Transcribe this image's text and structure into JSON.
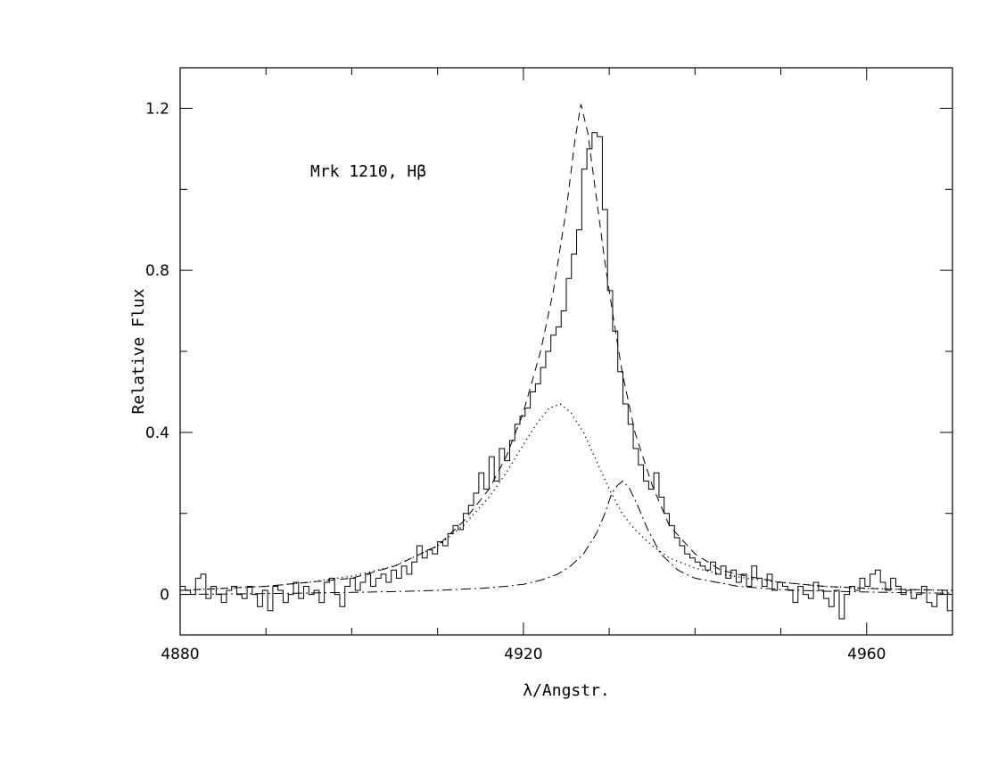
{
  "chart_data": {
    "type": "line",
    "annotation": "Mrk  1210,  Hβ",
    "xlabel": "λ/Angstr.",
    "ylabel": "Relative Flux",
    "xlim": [
      4880,
      4970
    ],
    "ylim": [
      -0.1,
      1.3
    ],
    "x_ticks": [
      "4880",
      "4920",
      "4960"
    ],
    "y_ticks": [
      "0",
      "0.4",
      "0.8",
      "1.2"
    ],
    "grid": false,
    "series": [
      {
        "style": "solid",
        "x": [
          4880,
          4880.6,
          4881.2,
          4881.8,
          4882.4,
          4883,
          4883.6,
          4884.2,
          4884.8,
          4885.4,
          4886,
          4886.6,
          4887.2,
          4887.8,
          4888.4,
          4889,
          4889.6,
          4890.2,
          4890.8,
          4891.4,
          4892,
          4892.6,
          4893.2,
          4893.8,
          4894.4,
          4895,
          4895.6,
          4896.2,
          4896.8,
          4897.4,
          4898,
          4898.6,
          4899.2,
          4899.8,
          4900.4,
          4901,
          4901.6,
          4902.2,
          4902.8,
          4903.4,
          4904,
          4904.6,
          4905.2,
          4905.8,
          4906.4,
          4907,
          4907.6,
          4908.2,
          4908.8,
          4909.4,
          4910,
          4910.6,
          4911.2,
          4911.8,
          4912.4,
          4913,
          4913.6,
          4914.2,
          4914.8,
          4915.4,
          4916,
          4916.6,
          4917.2,
          4917.8,
          4918.4,
          4919,
          4919.6,
          4920.2,
          4920.8,
          4921.4,
          4922,
          4922.6,
          4923.2,
          4923.8,
          4924.4,
          4925,
          4925.6,
          4926.2,
          4926.8,
          4927.4,
          4928,
          4928.6,
          4929.2,
          4929.8,
          4930.4,
          4931,
          4931.6,
          4932.2,
          4932.8,
          4933.4,
          4934,
          4934.6,
          4935.2,
          4935.8,
          4936.4,
          4937,
          4937.6,
          4938.2,
          4938.8,
          4939.4,
          4940,
          4940.6,
          4941.2,
          4941.8,
          4942.4,
          4943,
          4943.6,
          4944.2,
          4944.8,
          4945.4,
          4946,
          4946.6,
          4947.2,
          4947.8,
          4948.4,
          4949,
          4949.6,
          4950.2,
          4950.8,
          4951.4,
          4952,
          4952.6,
          4953.2,
          4953.8,
          4954.4,
          4955,
          4955.6,
          4956.2,
          4956.8,
          4957.4,
          4958,
          4958.6,
          4959.2,
          4959.8,
          4960.4,
          4961,
          4961.6,
          4962.2,
          4962.8,
          4963.4,
          4964,
          4964.6,
          4965.2,
          4965.8,
          4966.4,
          4967,
          4967.6,
          4968.2,
          4968.8,
          4969.4,
          4970
        ],
        "y": [
          0.02,
          0.01,
          0.0,
          0.04,
          0.05,
          -0.01,
          0.02,
          0.0,
          -0.02,
          0.01,
          0.02,
          0.0,
          -0.01,
          0.02,
          0.0,
          -0.03,
          0.01,
          -0.04,
          0.02,
          0.01,
          -0.02,
          0.0,
          0.03,
          -0.01,
          0.02,
          0.0,
          0.01,
          -0.02,
          0.03,
          0.04,
          0.0,
          -0.03,
          0.02,
          0.04,
          0.01,
          0.03,
          0.05,
          0.02,
          0.04,
          0.05,
          0.03,
          0.06,
          0.04,
          0.07,
          0.05,
          0.08,
          0.12,
          0.09,
          0.11,
          0.1,
          0.13,
          0.12,
          0.15,
          0.17,
          0.16,
          0.2,
          0.22,
          0.25,
          0.3,
          0.26,
          0.34,
          0.28,
          0.36,
          0.33,
          0.38,
          0.42,
          0.44,
          0.46,
          0.5,
          0.52,
          0.56,
          0.6,
          0.64,
          0.66,
          0.7,
          0.78,
          0.84,
          0.9,
          1.05,
          1.1,
          1.14,
          1.13,
          0.95,
          0.75,
          0.65,
          0.55,
          0.47,
          0.42,
          0.36,
          0.32,
          0.28,
          0.26,
          0.3,
          0.24,
          0.2,
          0.17,
          0.14,
          0.12,
          0.1,
          0.09,
          0.08,
          0.07,
          0.06,
          0.08,
          0.05,
          0.07,
          0.04,
          0.06,
          0.03,
          0.05,
          0.02,
          0.07,
          0.04,
          0.02,
          0.05,
          0.01,
          0.03,
          0.02,
          0.01,
          -0.02,
          0.02,
          0.0,
          -0.01,
          0.03,
          0.01,
          -0.01,
          -0.03,
          0.01,
          -0.06,
          0.0,
          0.02,
          0.01,
          0.04,
          0.02,
          0.05,
          0.06,
          0.03,
          0.01,
          0.04,
          0.02,
          0.0,
          0.01,
          -0.01,
          0.0,
          0.02,
          -0.02,
          -0.03,
          0.0,
          0.01,
          -0.04,
          0.02
        ]
      },
      {
        "style": "dashed",
        "x": [
          4880,
          4885,
          4890,
          4895,
          4900,
          4905,
          4910,
          4913,
          4916,
          4918,
          4920,
          4922,
          4923.5,
          4925,
          4926,
          4926.7,
          4927.5,
          4928.5,
          4929.5,
          4930.5,
          4931.5,
          4933,
          4935,
          4937,
          4940,
          4943,
          4946,
          4950,
          4955,
          4960,
          4965,
          4970
        ],
        "y": [
          0.01,
          0.015,
          0.02,
          0.03,
          0.04,
          0.07,
          0.12,
          0.18,
          0.26,
          0.34,
          0.45,
          0.6,
          0.75,
          0.95,
          1.12,
          1.21,
          1.14,
          0.98,
          0.82,
          0.68,
          0.55,
          0.4,
          0.27,
          0.17,
          0.1,
          0.06,
          0.045,
          0.03,
          0.02,
          0.015,
          0.012,
          0.01
        ]
      },
      {
        "style": "dotted",
        "x": [
          4880,
          4885,
          4890,
          4895,
          4900,
          4905,
          4910,
          4913,
          4916,
          4918,
          4920,
          4921.5,
          4923,
          4924.3,
          4925.5,
          4927,
          4928.5,
          4930,
          4931.5,
          4933,
          4935,
          4937,
          4940,
          4943,
          4946,
          4950,
          4955,
          4960,
          4965,
          4970
        ],
        "y": [
          0.01,
          0.015,
          0.02,
          0.03,
          0.045,
          0.07,
          0.12,
          0.17,
          0.24,
          0.3,
          0.37,
          0.42,
          0.46,
          0.47,
          0.45,
          0.4,
          0.33,
          0.26,
          0.2,
          0.16,
          0.12,
          0.09,
          0.065,
          0.05,
          0.04,
          0.03,
          0.02,
          0.015,
          0.012,
          0.01
        ]
      },
      {
        "style": "dash-dot",
        "x": [
          4880,
          4890,
          4900,
          4905,
          4910,
          4915,
          4918,
          4920,
          4922,
          4924,
          4925.5,
          4927,
          4928.5,
          4929.5,
          4930.3,
          4931,
          4931.6,
          4932.4,
          4933.3,
          4934.5,
          4936,
          4938,
          4940,
          4945,
          4950,
          4955,
          4960,
          4965,
          4970
        ],
        "y": [
          0.0,
          0.002,
          0.005,
          0.007,
          0.01,
          0.015,
          0.02,
          0.025,
          0.035,
          0.05,
          0.07,
          0.1,
          0.15,
          0.2,
          0.25,
          0.27,
          0.28,
          0.26,
          0.22,
          0.16,
          0.1,
          0.06,
          0.04,
          0.02,
          0.012,
          0.008,
          0.006,
          0.004,
          0.003
        ]
      }
    ]
  }
}
